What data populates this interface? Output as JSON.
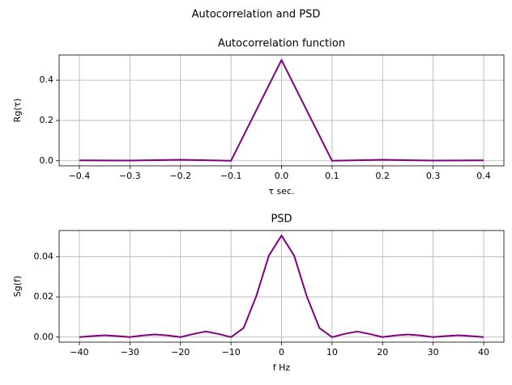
{
  "title": "Autocorrelation and PSD",
  "chart_data": [
    {
      "type": "line",
      "title": "Autocorrelation function",
      "x_label": "τ sec.",
      "y_label": "Rg(τ)",
      "x": [
        -0.4,
        -0.3,
        -0.2,
        -0.1,
        0,
        0.1,
        0.2,
        0.3,
        0.4
      ],
      "values": [
        0.002,
        0.001,
        0.005,
        0,
        0.5,
        0,
        0.005,
        0.001,
        0.002
      ],
      "color": "#800080",
      "grid": true,
      "xlim": [
        -0.44,
        0.44
      ],
      "ylim": [
        -0.025,
        0.525
      ],
      "xticks": [
        {
          "value": -0.4,
          "label": "−0.4"
        },
        {
          "value": -0.3,
          "label": "−0.3"
        },
        {
          "value": -0.2,
          "label": "−0.2"
        },
        {
          "value": -0.1,
          "label": "−0.1"
        },
        {
          "value": 0,
          "label": "0.0"
        },
        0.1,
        0.2,
        0.3,
        0.4
      ],
      "yticks": [
        {
          "value": 0,
          "label": "0.0"
        },
        0.2,
        0.4
      ]
    },
    {
      "type": "line",
      "title": "PSD",
      "x_label": "f Hz",
      "y_label": "Sg(f)",
      "x": [
        -40,
        -37.5,
        -35,
        -32.5,
        -30,
        -27.5,
        -25,
        -22.5,
        -20,
        -17.5,
        -15,
        -12.5,
        -10,
        -7.5,
        -5,
        -2.5,
        0,
        2.5,
        5,
        7.5,
        10,
        12.5,
        15,
        17.5,
        20,
        22.5,
        25,
        27.5,
        30,
        32.5,
        35,
        37.5,
        40
      ],
      "values": [
        0,
        0.0005,
        0.0009,
        0.0005,
        0,
        0.0008,
        0.0013,
        0.0008,
        0,
        0.0015,
        0.0028,
        0.0016,
        0,
        0.0045,
        0.0203,
        0.0405,
        0.0505,
        0.0405,
        0.0203,
        0.0045,
        0,
        0.0016,
        0.0028,
        0.0015,
        0,
        0.0008,
        0.0013,
        0.0008,
        0,
        0.0005,
        0.0009,
        0.0005,
        0
      ],
      "color": "#800080",
      "grid": true,
      "xlim": [
        -44,
        44
      ],
      "ylim": [
        -0.0025,
        0.053
      ],
      "xticks": [
        {
          "value": -40,
          "label": "−40"
        },
        {
          "value": -30,
          "label": "−30"
        },
        {
          "value": -20,
          "label": "−20"
        },
        {
          "value": -10,
          "label": "−10"
        },
        0,
        10,
        20,
        30,
        40
      ],
      "yticks": [
        {
          "value": 0,
          "label": "0.00"
        },
        {
          "value": 0.02,
          "label": "0.02"
        },
        {
          "value": 0.04,
          "label": "0.04"
        }
      ]
    }
  ]
}
